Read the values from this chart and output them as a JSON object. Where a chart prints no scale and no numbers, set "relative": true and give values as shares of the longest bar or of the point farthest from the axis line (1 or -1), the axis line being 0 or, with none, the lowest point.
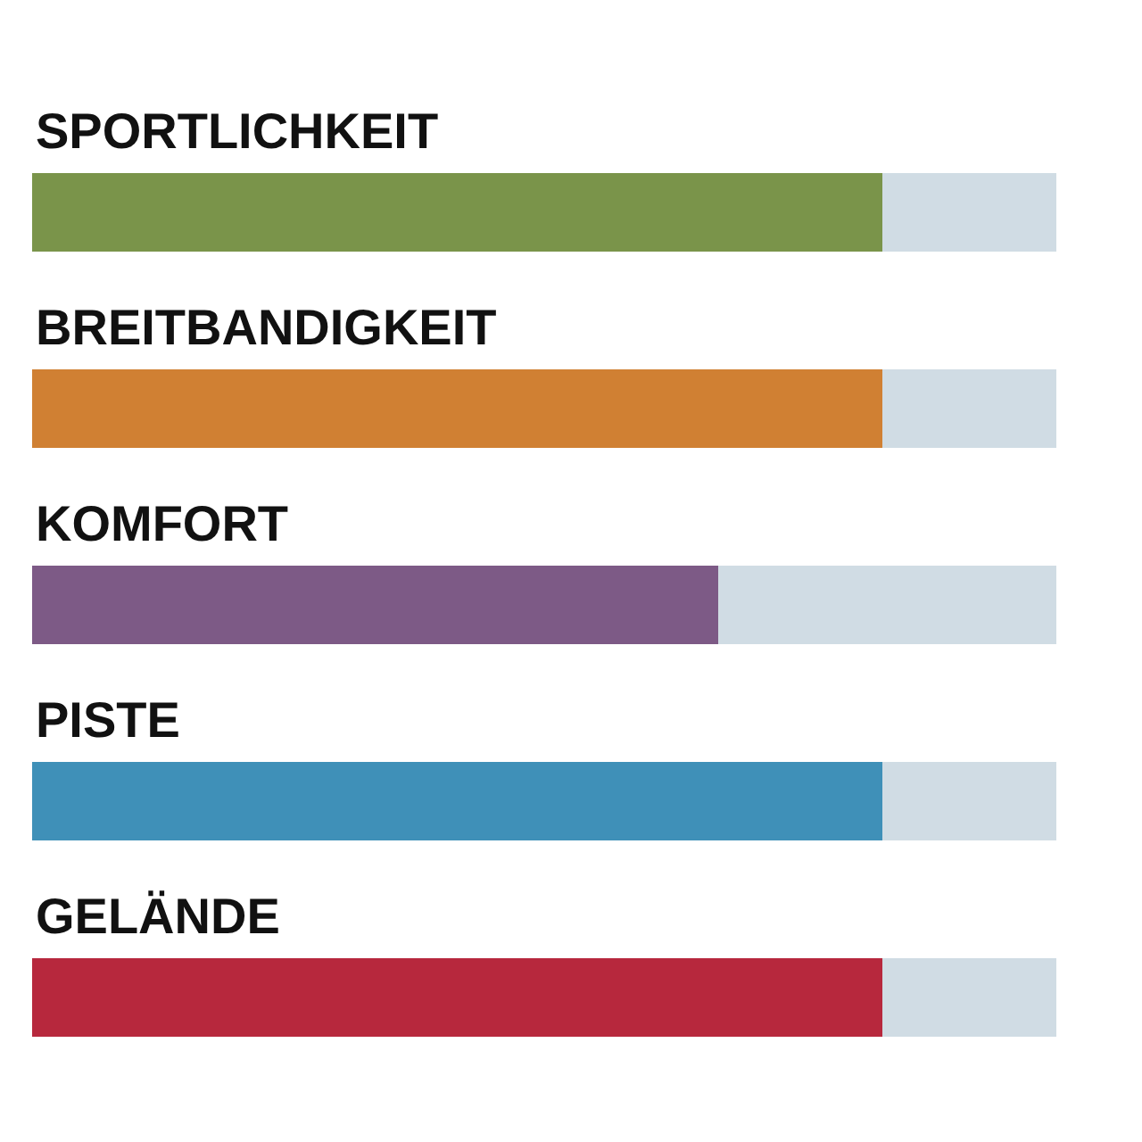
{
  "chart_data": {
    "type": "bar",
    "orientation": "horizontal",
    "stacked": true,
    "relative": true,
    "categories": [
      "SPORTLICHKEIT",
      "BREITBANDIGKEIT",
      "KOMFORT",
      "PISTE",
      "GELÄNDE"
    ],
    "series": [
      {
        "colors": [
          "#7a944a",
          "#d08033",
          "#7d5a86",
          "#3f90b8",
          "#b7283d"
        ],
        "values": [
          0.83,
          0.83,
          0.67,
          0.83,
          0.83
        ]
      },
      {
        "color": "#d0dce4",
        "values": [
          0.17,
          0.17,
          0.33,
          0.17,
          0.17
        ]
      }
    ]
  }
}
